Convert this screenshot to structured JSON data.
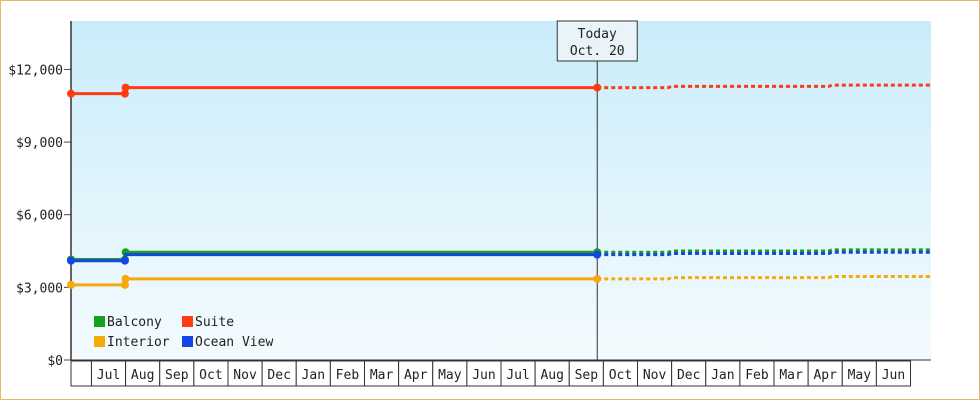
{
  "chart_data": {
    "type": "line",
    "title": "",
    "xlabel": "",
    "ylabel": "",
    "ylim": [
      0,
      14000
    ],
    "yticks": [
      0,
      3000,
      6000,
      9000,
      12000
    ],
    "ytick_labels": [
      "$0",
      "$3,000",
      "$6,000",
      "$9,000",
      "$12,000"
    ],
    "months": [
      "Jul",
      "Aug",
      "Sep",
      "Oct",
      "Nov",
      "Dec",
      "Jan",
      "Feb",
      "Mar",
      "Apr",
      "May",
      "Jun",
      "Jul",
      "Aug",
      "Sep",
      "Oct",
      "Nov",
      "Dec",
      "Jan",
      "Feb",
      "Mar",
      "Apr",
      "May",
      "Jun"
    ],
    "x_start": "Jun",
    "x_end": "Jun",
    "today_marker": {
      "line1": "Today",
      "line2": "Oct. 20",
      "x": 15.42
    },
    "grid": false,
    "legend_position": "bottom-left",
    "series": [
      {
        "name": "Suite",
        "color": "#ff3b14",
        "historical": [
          [
            0,
            11000
          ],
          [
            1.58,
            11000
          ],
          [
            1.6,
            11250
          ],
          [
            15.42,
            11250
          ]
        ],
        "markers": [
          [
            0,
            11000
          ],
          [
            1.58,
            11000
          ],
          [
            1.6,
            11250
          ],
          [
            15.42,
            11250
          ]
        ],
        "forecast": [
          [
            15.42,
            11250
          ],
          [
            17.5,
            11250
          ],
          [
            17.6,
            11300
          ],
          [
            22.2,
            11300
          ],
          [
            22.3,
            11350
          ],
          [
            25.2,
            11350
          ]
        ]
      },
      {
        "name": "Balcony",
        "color": "#13a31a",
        "historical": [
          [
            0,
            4150
          ],
          [
            1.58,
            4150
          ],
          [
            1.6,
            4450
          ],
          [
            15.42,
            4450
          ]
        ],
        "markers": [
          [
            0,
            4150
          ],
          [
            1.58,
            4150
          ],
          [
            1.6,
            4450
          ],
          [
            15.42,
            4450
          ]
        ],
        "forecast": [
          [
            15.42,
            4450
          ],
          [
            17.5,
            4450
          ],
          [
            17.6,
            4500
          ],
          [
            22.2,
            4500
          ],
          [
            22.3,
            4550
          ],
          [
            25.2,
            4550
          ]
        ]
      },
      {
        "name": "Ocean View",
        "color": "#1446e6",
        "historical": [
          [
            0,
            4100
          ],
          [
            1.58,
            4100
          ],
          [
            1.6,
            4350
          ],
          [
            15.42,
            4350
          ]
        ],
        "markers": [
          [
            0,
            4100
          ],
          [
            1.58,
            4100
          ],
          [
            15.42,
            4350
          ]
        ],
        "forecast": [
          [
            15.42,
            4350
          ],
          [
            17.5,
            4350
          ],
          [
            17.6,
            4400
          ],
          [
            22.2,
            4400
          ],
          [
            22.3,
            4450
          ],
          [
            25.2,
            4450
          ]
        ]
      },
      {
        "name": "Interior",
        "color": "#f7a80a",
        "historical": [
          [
            0,
            3100
          ],
          [
            1.58,
            3100
          ],
          [
            1.6,
            3350
          ],
          [
            15.42,
            3350
          ]
        ],
        "markers": [
          [
            0,
            3100
          ],
          [
            1.58,
            3100
          ],
          [
            1.6,
            3350
          ],
          [
            15.42,
            3350
          ]
        ],
        "forecast": [
          [
            15.42,
            3350
          ],
          [
            17.5,
            3350
          ],
          [
            17.6,
            3400
          ],
          [
            22.2,
            3400
          ],
          [
            22.3,
            3450
          ],
          [
            25.2,
            3450
          ]
        ]
      }
    ],
    "legend": [
      {
        "label": "Balcony",
        "color": "#13a31a"
      },
      {
        "label": "Suite",
        "color": "#ff3b14"
      },
      {
        "label": "Interior",
        "color": "#f7a80a"
      },
      {
        "label": "Ocean View",
        "color": "#1446e6"
      }
    ]
  }
}
